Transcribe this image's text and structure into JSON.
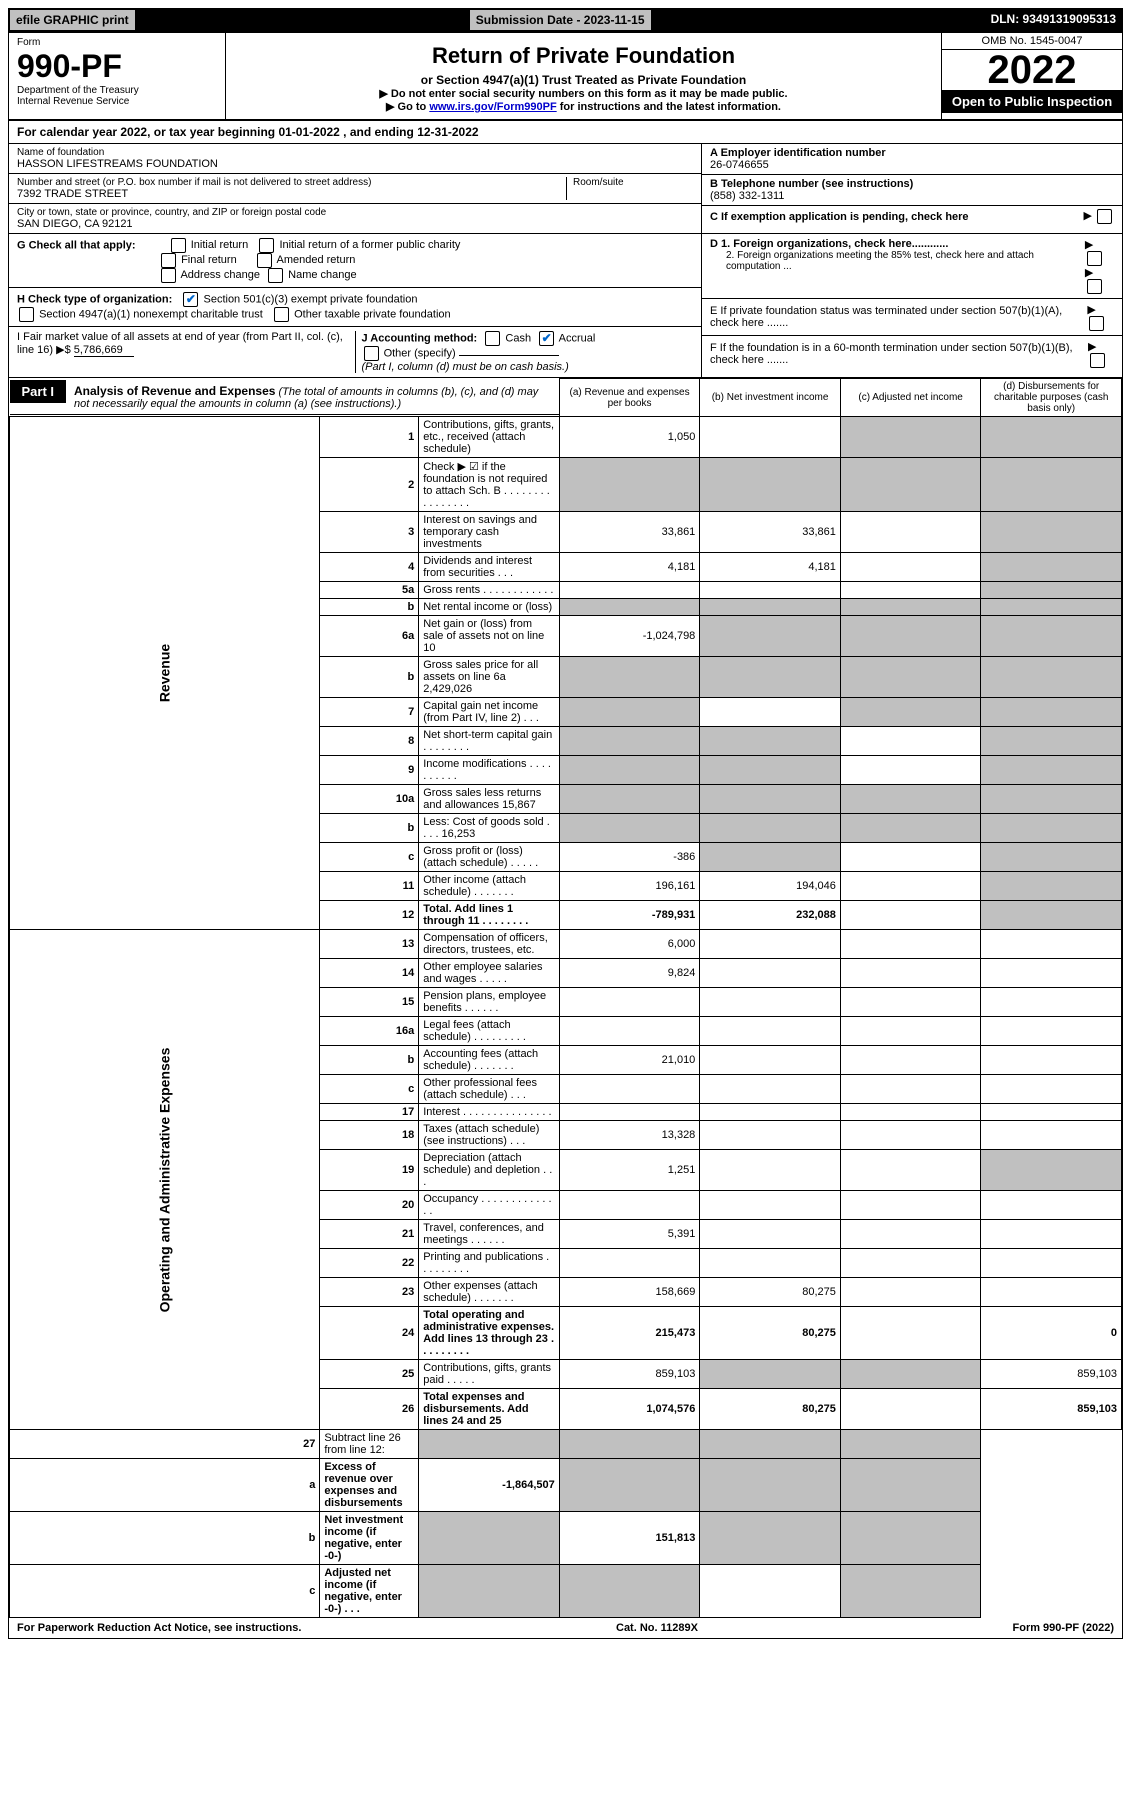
{
  "top": {
    "efile": "efile GRAPHIC print",
    "submission": "Submission Date - 2023-11-15",
    "dln": "DLN: 93491319095313"
  },
  "header": {
    "form_label": "Form",
    "form_no": "990-PF",
    "dept": "Department of the Treasury",
    "irs": "Internal Revenue Service",
    "title": "Return of Private Foundation",
    "subtitle": "or Section 4947(a)(1) Trust Treated as Private Foundation",
    "note1": "▶ Do not enter social security numbers on this form as it may be made public.",
    "note2_pre": "▶ Go to ",
    "note2_link": "www.irs.gov/Form990PF",
    "note2_post": " for instructions and the latest information.",
    "omb": "OMB No. 1545-0047",
    "year": "2022",
    "open": "Open to Public Inspection"
  },
  "calyear": {
    "pre": "For calendar year 2022, or tax year beginning ",
    "begin": "01-01-2022",
    "mid": " , and ending ",
    "end": "12-31-2022"
  },
  "entity": {
    "name_label": "Name of foundation",
    "name": "HASSON LIFESTREAMS FOUNDATION",
    "addr_label": "Number and street (or P.O. box number if mail is not delivered to street address)",
    "addr": "7392 TRADE STREET",
    "room_label": "Room/suite",
    "room": "",
    "city_label": "City or town, state or province, country, and ZIP or foreign postal code",
    "city": "SAN DIEGO, CA  92121",
    "a_label": "A Employer identification number",
    "a_val": "26-0746655",
    "b_label": "B Telephone number (see instructions)",
    "b_val": "(858) 332-1311",
    "c_label": "C If exemption application is pending, check here"
  },
  "checks": {
    "g_label": "G Check all that apply:",
    "g_opts": [
      "Initial return",
      "Initial return of a former public charity",
      "Final return",
      "Amended return",
      "Address change",
      "Name change"
    ],
    "h_label": "H Check type of organization:",
    "h1": "Section 501(c)(3) exempt private foundation",
    "h2": "Section 4947(a)(1) nonexempt charitable trust",
    "h3": "Other taxable private foundation",
    "i_label": "I Fair market value of all assets at end of year (from Part II, col. (c), line 16) ▶$ ",
    "i_val": "5,786,669",
    "j_label": "J Accounting method:",
    "j_cash": "Cash",
    "j_accrual": "Accrual",
    "j_other": "Other (specify)",
    "j_note": "(Part I, column (d) must be on cash basis.)",
    "d1": "D 1. Foreign organizations, check here............",
    "d2": "2. Foreign organizations meeting the 85% test, check here and attach computation ...",
    "e": "E  If private foundation status was terminated under section 507(b)(1)(A), check here .......",
    "f": "F  If the foundation is in a 60-month termination under section 507(b)(1)(B), check here .......",
    "arrow": "▶"
  },
  "part1": {
    "badge": "Part I",
    "title": "Analysis of Revenue and Expenses",
    "desc": " (The total of amounts in columns (b), (c), and (d) may not necessarily equal the amounts in column (a) (see instructions).)",
    "col_a": "(a)   Revenue and expenses per books",
    "col_b": "(b)  Net investment income",
    "col_c": "(c)  Adjusted net income",
    "col_d": "(d)  Disbursements for charitable purposes (cash basis only)"
  },
  "sides": {
    "revenue": "Revenue",
    "expenses": "Operating and Administrative Expenses"
  },
  "rows": [
    {
      "n": "1",
      "d": "Contributions, gifts, grants, etc., received (attach schedule)",
      "a": "1,050",
      "b": "",
      "c_s": true,
      "d_s": true
    },
    {
      "n": "2",
      "d": "Check ▶ ☑ if the foundation is not required to attach Sch. B   . . . . . . . . . . . . . . . .",
      "a_s": true,
      "b_s": true,
      "c_s": true,
      "d_s": true
    },
    {
      "n": "3",
      "d": "Interest on savings and temporary cash investments",
      "a": "33,861",
      "b": "33,861",
      "c": "",
      "d_s": true
    },
    {
      "n": "4",
      "d": "Dividends and interest from securities   . . .",
      "a": "4,181",
      "b": "4,181",
      "c": "",
      "d_s": true
    },
    {
      "n": "5a",
      "d": "Gross rents   . . . . . . . . . . . .",
      "a": "",
      "b": "",
      "c": "",
      "d_s": true
    },
    {
      "n": "b",
      "d": "Net rental income or (loss)  ",
      "a_s": true,
      "b_s": true,
      "c_s": true,
      "d_s": true
    },
    {
      "n": "6a",
      "d": "Net gain or (loss) from sale of assets not on line 10",
      "a": "-1,024,798",
      "b_s": true,
      "c_s": true,
      "d_s": true
    },
    {
      "n": "b",
      "d": "Gross sales price for all assets on line 6a          2,429,026",
      "a_s": true,
      "b_s": true,
      "c_s": true,
      "d_s": true
    },
    {
      "n": "7",
      "d": "Capital gain net income (from Part IV, line 2)   . . .",
      "a_s": true,
      "b": "",
      "c_s": true,
      "d_s": true
    },
    {
      "n": "8",
      "d": "Net short-term capital gain  . . . . . . . .",
      "a_s": true,
      "b_s": true,
      "c": "",
      "d_s": true
    },
    {
      "n": "9",
      "d": "Income modifications  . . . . . . . . . .",
      "a_s": true,
      "b_s": true,
      "c": "",
      "d_s": true
    },
    {
      "n": "10a",
      "d": "Gross sales less returns and allowances             15,867",
      "a_s": true,
      "b_s": true,
      "c_s": true,
      "d_s": true
    },
    {
      "n": "b",
      "d": "Less: Cost of goods sold   . . . .                        16,253",
      "a_s": true,
      "b_s": true,
      "c_s": true,
      "d_s": true
    },
    {
      "n": "c",
      "d": "Gross profit or (loss) (attach schedule)   . . . . .",
      "a": "-386",
      "b_s": true,
      "c": "",
      "d_s": true
    },
    {
      "n": "11",
      "d": "Other income (attach schedule)   . . . . . . .",
      "a": "196,161",
      "b": "194,046",
      "c": "",
      "d_s": true
    },
    {
      "n": "12",
      "d": "Total. Add lines 1 through 11  . . . . . . . .",
      "a": "-789,931",
      "b": "232,088",
      "c": "",
      "d_s": true,
      "bold": true
    }
  ],
  "rows2": [
    {
      "n": "13",
      "d": "Compensation of officers, directors, trustees, etc.",
      "a": "6,000",
      "b": "",
      "c": "",
      "dd": ""
    },
    {
      "n": "14",
      "d": "Other employee salaries and wages   . . . . .",
      "a": "9,824",
      "b": "",
      "c": "",
      "dd": ""
    },
    {
      "n": "15",
      "d": "Pension plans, employee benefits  . . . . . .",
      "a": "",
      "b": "",
      "c": "",
      "dd": ""
    },
    {
      "n": "16a",
      "d": "Legal fees (attach schedule) . . . . . . . . .",
      "a": "",
      "b": "",
      "c": "",
      "dd": ""
    },
    {
      "n": "b",
      "d": "Accounting fees (attach schedule) . . . . . . .",
      "a": "21,010",
      "b": "",
      "c": "",
      "dd": ""
    },
    {
      "n": "c",
      "d": "Other professional fees (attach schedule)   . . .",
      "a": "",
      "b": "",
      "c": "",
      "dd": ""
    },
    {
      "n": "17",
      "d": "Interest  . . . . . . . . . . . . . . .",
      "a": "",
      "b": "",
      "c": "",
      "dd": ""
    },
    {
      "n": "18",
      "d": "Taxes (attach schedule) (see instructions)   . . .",
      "a": "13,328",
      "b": "",
      "c": "",
      "dd": ""
    },
    {
      "n": "19",
      "d": "Depreciation (attach schedule) and depletion   . . .",
      "a": "1,251",
      "b": "",
      "c": "",
      "d_s": true
    },
    {
      "n": "20",
      "d": "Occupancy . . . . . . . . . . . . . .",
      "a": "",
      "b": "",
      "c": "",
      "dd": ""
    },
    {
      "n": "21",
      "d": "Travel, conferences, and meetings . . . . . .",
      "a": "5,391",
      "b": "",
      "c": "",
      "dd": ""
    },
    {
      "n": "22",
      "d": "Printing and publications . . . . . . . . .",
      "a": "",
      "b": "",
      "c": "",
      "dd": ""
    },
    {
      "n": "23",
      "d": "Other expenses (attach schedule) . . . . . . .",
      "a": "158,669",
      "b": "80,275",
      "c": "",
      "dd": ""
    },
    {
      "n": "24",
      "d": "Total operating and administrative expenses. Add lines 13 through 23  . . . . . . . . .",
      "a": "215,473",
      "b": "80,275",
      "c": "",
      "dd": "0",
      "bold": true
    },
    {
      "n": "25",
      "d": "Contributions, gifts, grants paid   . . . . .",
      "a": "859,103",
      "b_s": true,
      "c_s": true,
      "dd": "859,103"
    },
    {
      "n": "26",
      "d": "Total expenses and disbursements. Add lines 24 and 25",
      "a": "1,074,576",
      "b": "80,275",
      "c": "",
      "dd": "859,103",
      "bold": true
    }
  ],
  "rows3": [
    {
      "n": "27",
      "d": "Subtract line 26 from line 12:",
      "a_s": true,
      "b_s": true,
      "c_s": true,
      "d_s": true
    },
    {
      "n": "a",
      "d": "Excess of revenue over expenses and disbursements",
      "a": "-1,864,507",
      "b_s": true,
      "c_s": true,
      "d_s": true,
      "bold": true
    },
    {
      "n": "b",
      "d": "Net investment income (if negative, enter -0-)",
      "a_s": true,
      "b": "151,813",
      "c_s": true,
      "d_s": true,
      "bold": true
    },
    {
      "n": "c",
      "d": "Adjusted net income (if negative, enter -0-)  . . .",
      "a_s": true,
      "b_s": true,
      "c": "",
      "d_s": true,
      "bold": true
    }
  ],
  "footer": {
    "left": "For Paperwork Reduction Act Notice, see instructions.",
    "mid": "Cat. No. 11289X",
    "right": "Form 990-PF (2022)"
  },
  "colors": {
    "link": "#0000cc",
    "check": "#0066cc",
    "shade": "#c0c0c0",
    "black": "#000000",
    "white": "#ffffff"
  }
}
